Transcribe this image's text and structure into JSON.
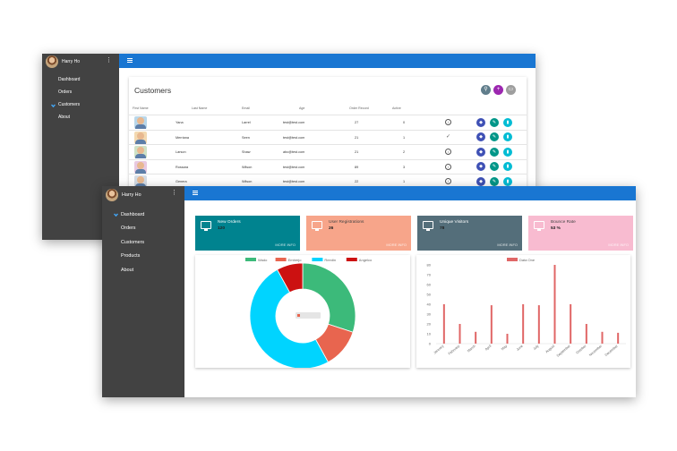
{
  "back_window": {
    "user": "Harry Ho",
    "nav": [
      {
        "label": "Dashboard",
        "active": false
      },
      {
        "label": "Orders",
        "active": false
      },
      {
        "label": "Customers",
        "active": true
      },
      {
        "label": "About",
        "active": false
      }
    ],
    "customers": {
      "title": "Customers",
      "columns": [
        "First Name",
        "Last Name",
        "Email",
        "Age",
        "Order Record",
        "Active"
      ],
      "rows": [
        {
          "first": "Yana",
          "last": "Larrel",
          "email": "test@test.com",
          "age": "27",
          "orders": "0",
          "active": "block"
        },
        {
          "first": "Merriana",
          "last": "Seen",
          "email": "test@test.com",
          "age": "21",
          "orders": "1",
          "active": "check"
        },
        {
          "first": "Larson",
          "last": "Shaw",
          "email": "abc@test.com",
          "age": "21",
          "orders": "2",
          "active": "block"
        },
        {
          "first": "Rossara",
          "last": "Wilson",
          "email": "test@test.com",
          "age": "89",
          "orders": "3",
          "active": "block"
        },
        {
          "first": "Genera",
          "last": "Wilson",
          "email": "test@test.com",
          "age": "22",
          "orders": "1",
          "active": "block"
        }
      ],
      "header_actions": [
        {
          "icon": "search-icon",
          "color": "#607d8b"
        },
        {
          "icon": "add-icon",
          "color": "#9c27b0"
        },
        {
          "icon": "print-icon",
          "color": "#9e9e9e"
        }
      ],
      "row_action_colors": [
        "#3f51b5",
        "#009688",
        "#00bcd4"
      ]
    }
  },
  "front_window": {
    "user": "Harry Ho",
    "nav": [
      {
        "label": "Dashboard",
        "active": true
      },
      {
        "label": "Orders",
        "active": false
      },
      {
        "label": "Customers",
        "active": false
      },
      {
        "label": "Products",
        "active": false
      },
      {
        "label": "About",
        "active": false
      }
    ],
    "stats": [
      {
        "label": "New Orders",
        "value": "120",
        "more": "MORE INFO",
        "color": "#00838f",
        "label_color": "#ffffff"
      },
      {
        "label": "User Registrations",
        "value": "26",
        "more": "MORE INFO",
        "color": "#f7a58a",
        "label_color": "#444444"
      },
      {
        "label": "Unique Visitors",
        "value": "78",
        "more": "MORE INFO",
        "color": "#546e7a",
        "label_color": "#ffffff"
      },
      {
        "label": "Bounce Rate",
        "value": "53 %",
        "more": "MORE INFO",
        "color": "#f8bbd0",
        "label_color": "#444444"
      }
    ]
  },
  "chart_data": [
    {
      "type": "pie",
      "donut": true,
      "legend_position": "top",
      "categories": [
        "Wado",
        "Emberjo",
        "Reedin",
        "Angelco"
      ],
      "values": [
        30,
        12,
        50,
        8
      ],
      "colors": [
        "#3cba7a",
        "#e8654f",
        "#00d4ff",
        "#cc1111"
      ]
    },
    {
      "type": "bar",
      "legend_position": "top",
      "series": [
        {
          "name": "Data One",
          "color": "#e06666",
          "values": [
            40,
            20,
            12,
            39,
            10,
            40,
            39,
            80,
            40,
            20,
            12,
            11
          ]
        }
      ],
      "categories": [
        "January",
        "February",
        "March",
        "April",
        "May",
        "June",
        "July",
        "August",
        "September",
        "October",
        "November",
        "December"
      ],
      "ylim": [
        0,
        80
      ],
      "yticks": [
        0,
        10,
        20,
        30,
        40,
        50,
        60,
        70,
        80
      ],
      "grid": false
    }
  ]
}
